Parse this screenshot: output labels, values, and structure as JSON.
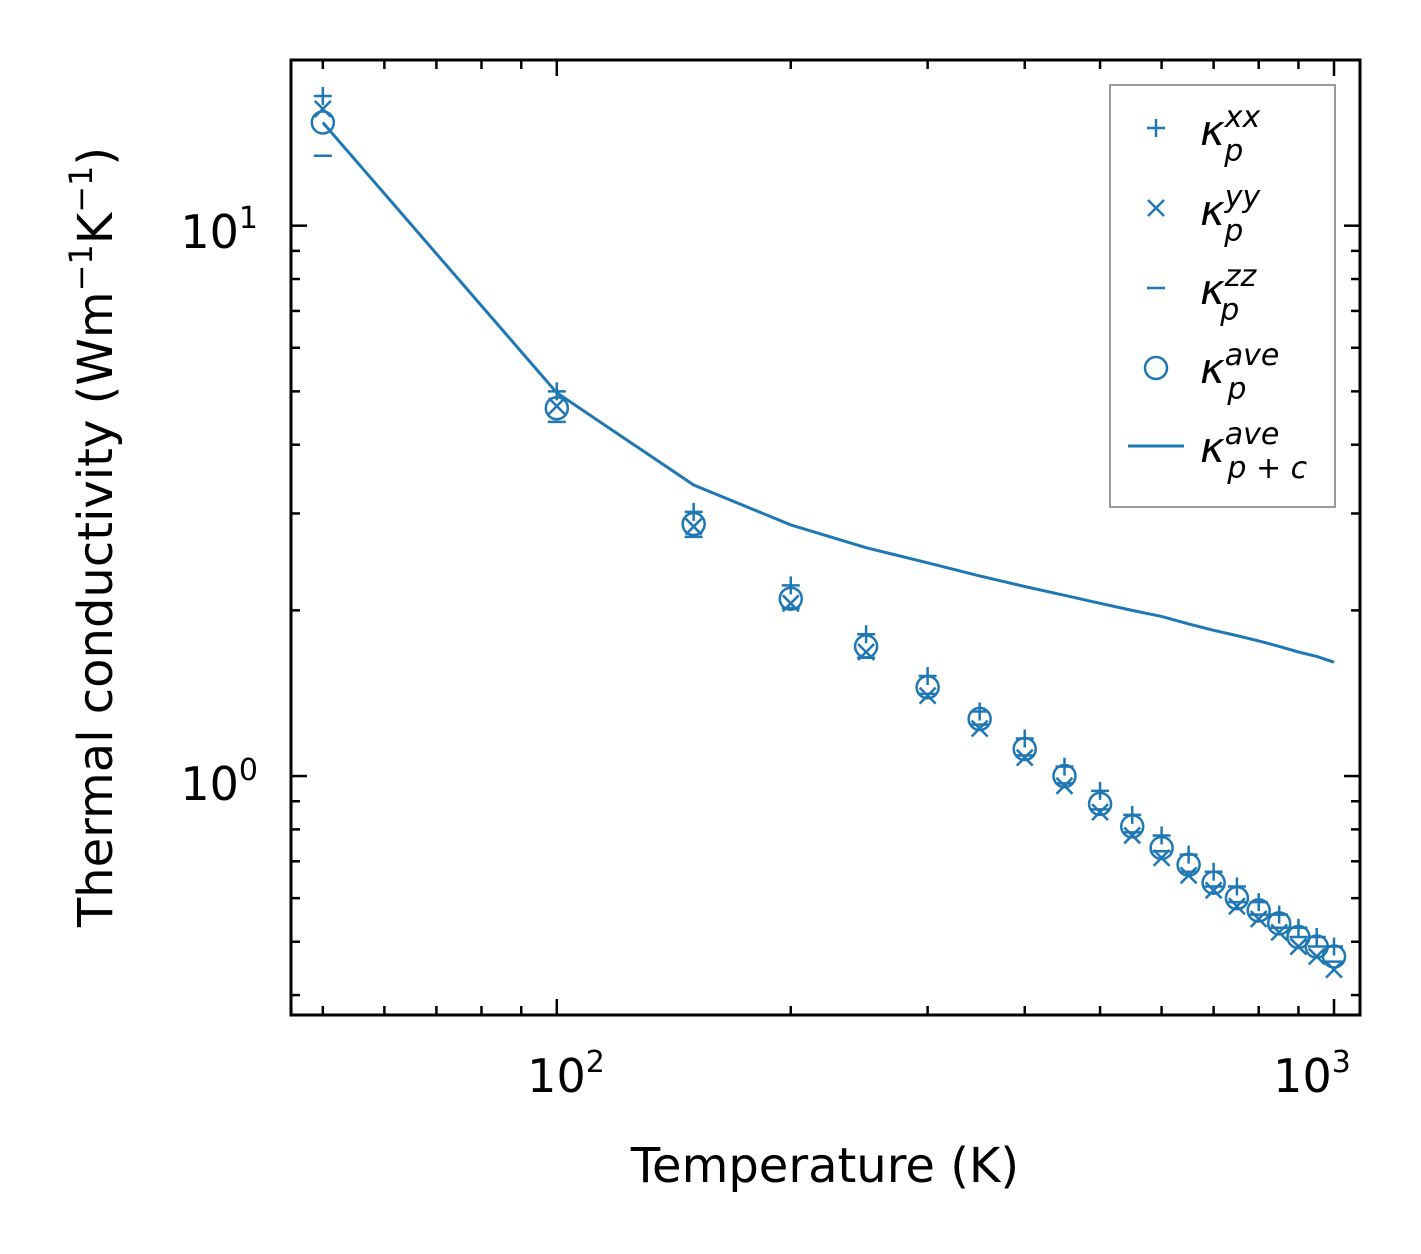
{
  "chart_data": {
    "type": "scatter",
    "xlabel": "Temperature (K)",
    "ylabel": "Thermal conductivity (Wm$^{-1}$K$^{-1}$)",
    "ylabel_parts": {
      "main": "Thermal conductivity (Wm",
      "exp1": "−1",
      "mid": "K",
      "exp2": "−1",
      "end": ")"
    },
    "xscale": "log",
    "yscale": "log",
    "xlim": [
      45.5,
      1080
    ],
    "ylim": [
      0.368,
      20
    ],
    "x_ticks": [
      {
        "base": "10",
        "exp": "2",
        "value": 100
      },
      {
        "base": "10",
        "exp": "3",
        "value": 1000
      }
    ],
    "y_ticks": [
      {
        "base": "10",
        "exp": "0",
        "value": 1
      },
      {
        "base": "10",
        "exp": "1",
        "value": 10
      }
    ],
    "color": "#1f77b4",
    "x": [
      50,
      100,
      150,
      200,
      250,
      300,
      350,
      400,
      450,
      500,
      550,
      600,
      650,
      700,
      750,
      800,
      850,
      900,
      950,
      1000
    ],
    "series": [
      {
        "name": "kxx",
        "marker": "plus",
        "legend": {
          "base": "κ",
          "sup": "xx",
          "sub": "p"
        },
        "values": [
          17.2,
          5.0,
          3.02,
          2.22,
          1.81,
          1.52,
          1.31,
          1.17,
          1.04,
          0.94,
          0.85,
          0.78,
          0.72,
          0.67,
          0.63,
          0.59,
          0.56,
          0.53,
          0.51,
          0.49
        ]
      },
      {
        "name": "kyy",
        "marker": "x",
        "legend": {
          "base": "κ",
          "sup": "yy",
          "sub": "p"
        },
        "values": [
          16.3,
          4.7,
          2.84,
          2.06,
          1.68,
          1.4,
          1.22,
          1.08,
          0.96,
          0.86,
          0.78,
          0.71,
          0.66,
          0.62,
          0.58,
          0.55,
          0.52,
          0.49,
          0.47,
          0.445
        ]
      },
      {
        "name": "kzz",
        "marker": "hline",
        "legend": {
          "base": "κ",
          "sup": "zz",
          "sub": "p"
        },
        "values": [
          13.4,
          4.4,
          2.72,
          2.02,
          1.64,
          1.41,
          1.24,
          1.09,
          0.97,
          0.87,
          0.79,
          0.73,
          0.67,
          0.63,
          0.59,
          0.56,
          0.53,
          0.51,
          0.49,
          0.46
        ]
      },
      {
        "name": "kave",
        "marker": "circle",
        "legend": {
          "base": "κ",
          "sup": "ave",
          "sub": "p"
        },
        "values": [
          15.4,
          4.66,
          2.87,
          2.1,
          1.72,
          1.45,
          1.27,
          1.12,
          1.0,
          0.89,
          0.81,
          0.74,
          0.69,
          0.64,
          0.6,
          0.57,
          0.54,
          0.51,
          0.49,
          0.47
        ]
      },
      {
        "name": "kave_p_c",
        "marker": "line",
        "legend": {
          "base": "κ",
          "sup": "ave",
          "sub": "p + c"
        },
        "values": [
          15.4,
          4.97,
          3.38,
          2.86,
          2.6,
          2.44,
          2.31,
          2.21,
          2.13,
          2.06,
          2.0,
          1.95,
          1.89,
          1.84,
          1.8,
          1.76,
          1.72,
          1.68,
          1.65,
          1.61
        ]
      }
    ],
    "legend_position": "upper-right",
    "grid": false
  }
}
